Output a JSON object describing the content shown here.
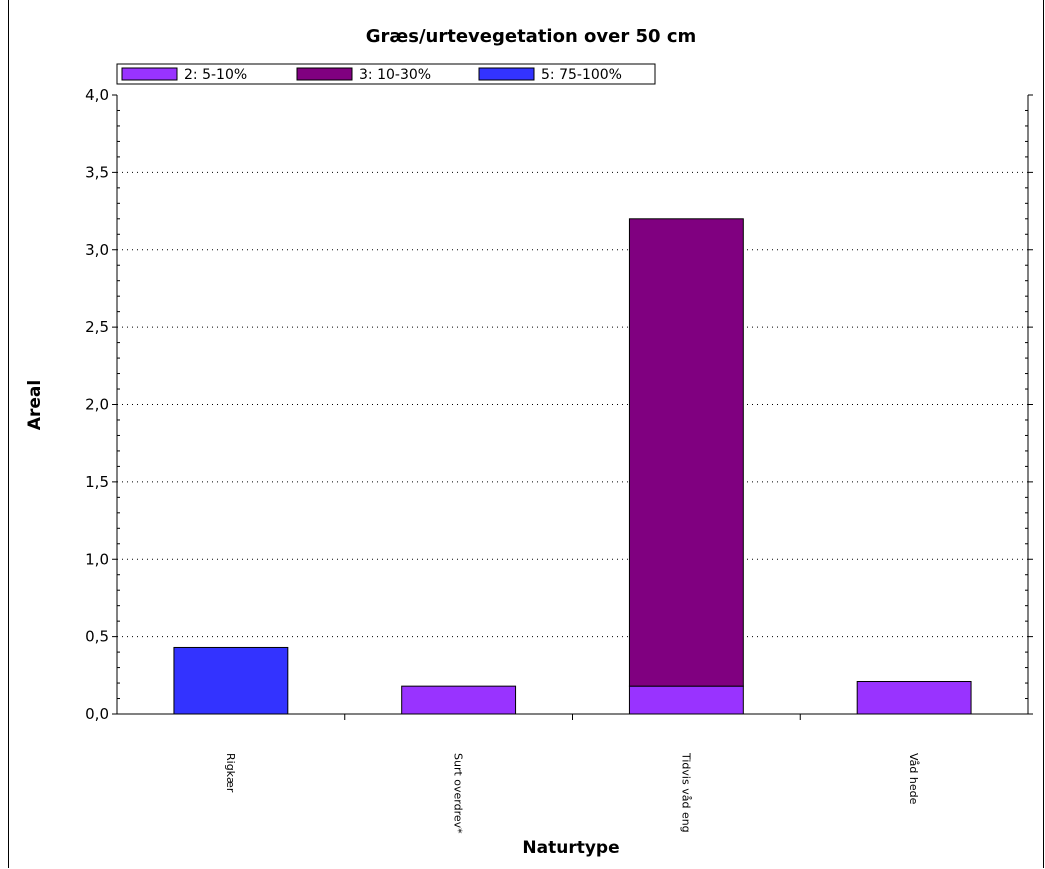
{
  "chart_data": {
    "type": "bar",
    "stacked": true,
    "title": "Græs/urtevegetation over 50 cm",
    "xlabel": "Naturtype",
    "ylabel": "Areal",
    "ylim": [
      0,
      4
    ],
    "yticks": [
      "0,0",
      "0,5",
      "1,0",
      "1,5",
      "2,0",
      "2,5",
      "3,0",
      "3,5",
      "4,0"
    ],
    "grid": "horizontal dotted",
    "legend_position": "top-left",
    "categories": [
      "Rigkær",
      "Surt overdrev*",
      "Tidvis våd eng",
      "Våd hede"
    ],
    "series": [
      {
        "name": "2: 5-10%",
        "color": "#9933ff",
        "values": [
          0,
          0.18,
          0.18,
          0.21
        ]
      },
      {
        "name": "3: 10-30%",
        "color": "#800080",
        "values": [
          0,
          0,
          3.02,
          0
        ]
      },
      {
        "name": "5: 75-100%",
        "color": "#3333ff",
        "values": [
          0.43,
          0,
          0,
          0
        ]
      }
    ]
  }
}
